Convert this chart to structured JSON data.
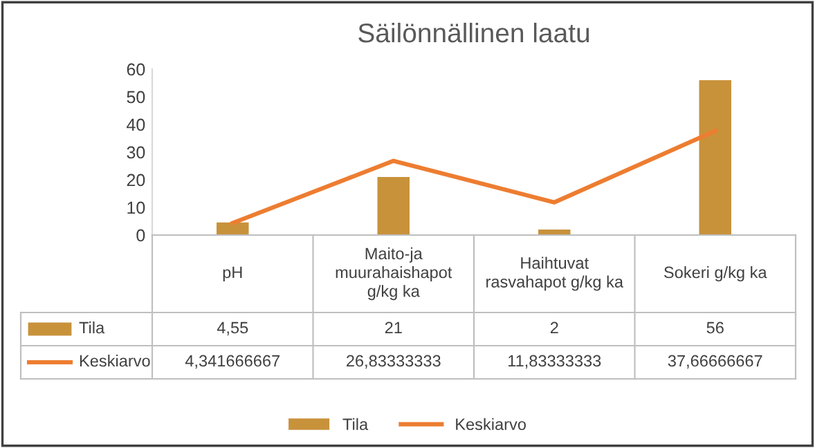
{
  "chart_data": {
    "type": "bar",
    "title": "Säilönnällinen laatu",
    "categories": [
      "pH",
      "Maito-ja muurahaishapot g/kg ka",
      "Haihtuvat rasvahapot g/kg ka",
      "Sokeri g/kg ka"
    ],
    "series": [
      {
        "name": "Tila",
        "color": "#c8923b",
        "values": [
          4.55,
          21,
          2,
          56
        ],
        "value_labels": [
          "4,55",
          "21",
          "2",
          "56"
        ]
      },
      {
        "name": "Keskiarvo",
        "type": "line",
        "color": "#ed7d31",
        "values": [
          4.341666667,
          26.83333333,
          11.83333333,
          37.66666667
        ],
        "value_labels": [
          "4,341666667",
          "26,83333333",
          "11,83333333",
          "37,66666667"
        ]
      }
    ],
    "ylim": [
      0,
      60
    ],
    "yticks": [
      0,
      10,
      20,
      30,
      40,
      50,
      60
    ],
    "legend": "bottom"
  }
}
